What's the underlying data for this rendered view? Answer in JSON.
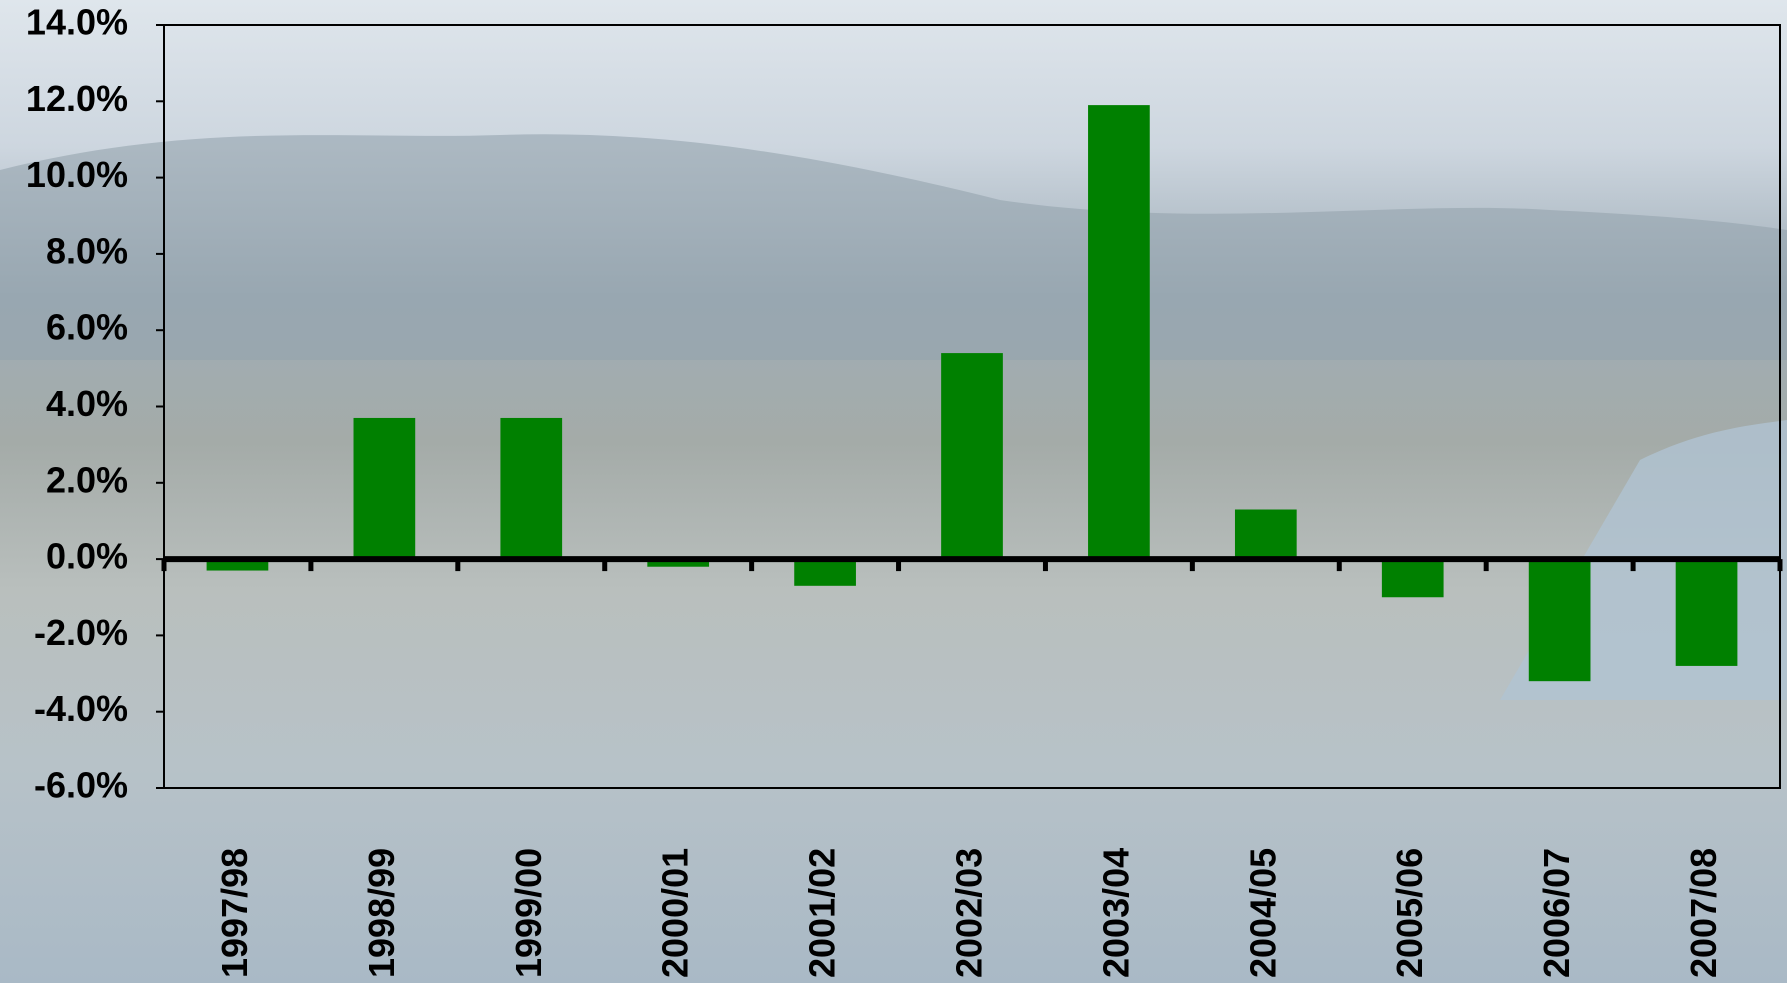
{
  "chart_data": {
    "type": "bar",
    "categories": [
      "1997/98",
      "1998/99",
      "1999/00",
      "2000/01",
      "2001/02",
      "2002/03",
      "2003/04",
      "2004/05",
      "2005/06",
      "2006/07",
      "2007/08"
    ],
    "values": [
      -0.3,
      3.7,
      3.7,
      -0.2,
      -0.7,
      5.4,
      11.9,
      1.3,
      -1.0,
      -3.2,
      -2.8
    ],
    "color": "#008000",
    "ylim": [
      -6,
      14
    ],
    "yticks": [
      {
        "value": -6,
        "label": "-6.0%"
      },
      {
        "value": -4,
        "label": "-4.0%"
      },
      {
        "value": -2,
        "label": "-2.0%"
      },
      {
        "value": 0,
        "label": "0.0%"
      },
      {
        "value": 2,
        "label": "2.0%"
      },
      {
        "value": 4,
        "label": "4.0%"
      },
      {
        "value": 6,
        "label": "6.0%"
      },
      {
        "value": 8,
        "label": "8.0%"
      },
      {
        "value": 10,
        "label": "10.0%"
      },
      {
        "value": 12,
        "label": "12.0%"
      },
      {
        "value": 14,
        "label": "14.0%"
      }
    ],
    "grid": false
  }
}
